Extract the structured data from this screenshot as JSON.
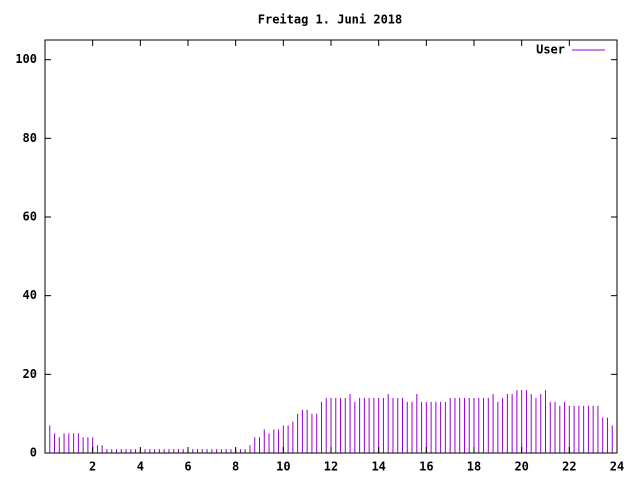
{
  "chart_data": {
    "type": "impulses",
    "title": "Freitag 1. Juni 2018",
    "xlim": [
      0,
      24
    ],
    "xticks": [
      2,
      4,
      6,
      8,
      10,
      12,
      14,
      16,
      18,
      20,
      22,
      24
    ],
    "ylim": [
      0,
      105
    ],
    "yticks": [
      0,
      20,
      40,
      60,
      80,
      100
    ],
    "legend": "top right",
    "x": [
      0,
      0.2,
      0.4,
      0.6,
      0.8,
      1,
      1.2,
      1.4,
      1.6,
      1.8,
      2,
      2.2,
      2.4,
      2.6,
      2.8,
      3,
      3.2,
      3.4,
      3.6,
      3.8,
      4,
      4.2,
      4.4,
      4.6,
      4.8,
      5,
      5.2,
      5.4,
      5.6,
      5.8,
      6,
      6.2,
      6.4,
      6.6,
      6.8,
      7,
      7.2,
      7.4,
      7.6,
      7.8,
      8,
      8.2,
      8.4,
      8.6,
      8.8,
      9,
      9.2,
      9.4,
      9.6,
      9.8,
      10,
      10.2,
      10.4,
      10.6,
      10.8,
      11,
      11.2,
      11.4,
      11.6,
      11.8,
      12,
      12.2,
      12.4,
      12.6,
      12.8,
      13,
      13.2,
      13.4,
      13.6,
      13.8,
      14,
      14.2,
      14.4,
      14.6,
      14.8,
      15,
      15.2,
      15.4,
      15.6,
      15.8,
      16,
      16.2,
      16.4,
      16.6,
      16.8,
      17,
      17.2,
      17.4,
      17.6,
      17.8,
      18,
      18.2,
      18.4,
      18.6,
      18.8,
      19,
      19.2,
      19.4,
      19.6,
      19.8,
      20,
      20.2,
      20.4,
      20.6,
      20.8,
      21,
      21.2,
      21.4,
      21.6,
      21.8,
      22,
      22.2,
      22.4,
      22.6,
      22.8,
      23,
      23.2,
      23.4,
      23.6,
      23.8
    ],
    "series": [
      {
        "name": "User",
        "color": "#9400d3",
        "values": [
          8,
          7,
          5,
          4,
          5,
          5,
          5,
          5,
          4,
          4,
          4,
          2,
          2,
          1,
          1,
          1,
          1,
          1,
          1,
          1,
          1,
          1,
          1,
          1,
          1,
          1,
          1,
          1,
          1,
          1,
          1,
          1,
          1,
          1,
          1,
          1,
          1,
          1,
          1,
          1,
          1,
          1,
          1,
          2,
          4,
          4,
          6,
          5,
          6,
          6,
          7,
          7,
          8,
          10,
          11,
          11,
          10,
          10,
          13,
          14,
          14,
          14,
          14,
          14,
          15,
          13,
          14,
          14,
          14,
          14,
          14,
          14,
          15,
          14,
          14,
          14,
          13,
          13,
          15,
          13,
          13,
          13,
          13,
          13,
          13,
          14,
          14,
          14,
          14,
          14,
          14,
          14,
          14,
          14,
          15,
          13,
          14,
          15,
          15,
          16,
          16,
          16,
          15,
          14,
          15,
          16,
          13,
          13,
          12,
          13,
          12,
          12,
          12,
          12,
          12,
          12,
          12,
          9,
          9,
          7
        ]
      }
    ]
  }
}
